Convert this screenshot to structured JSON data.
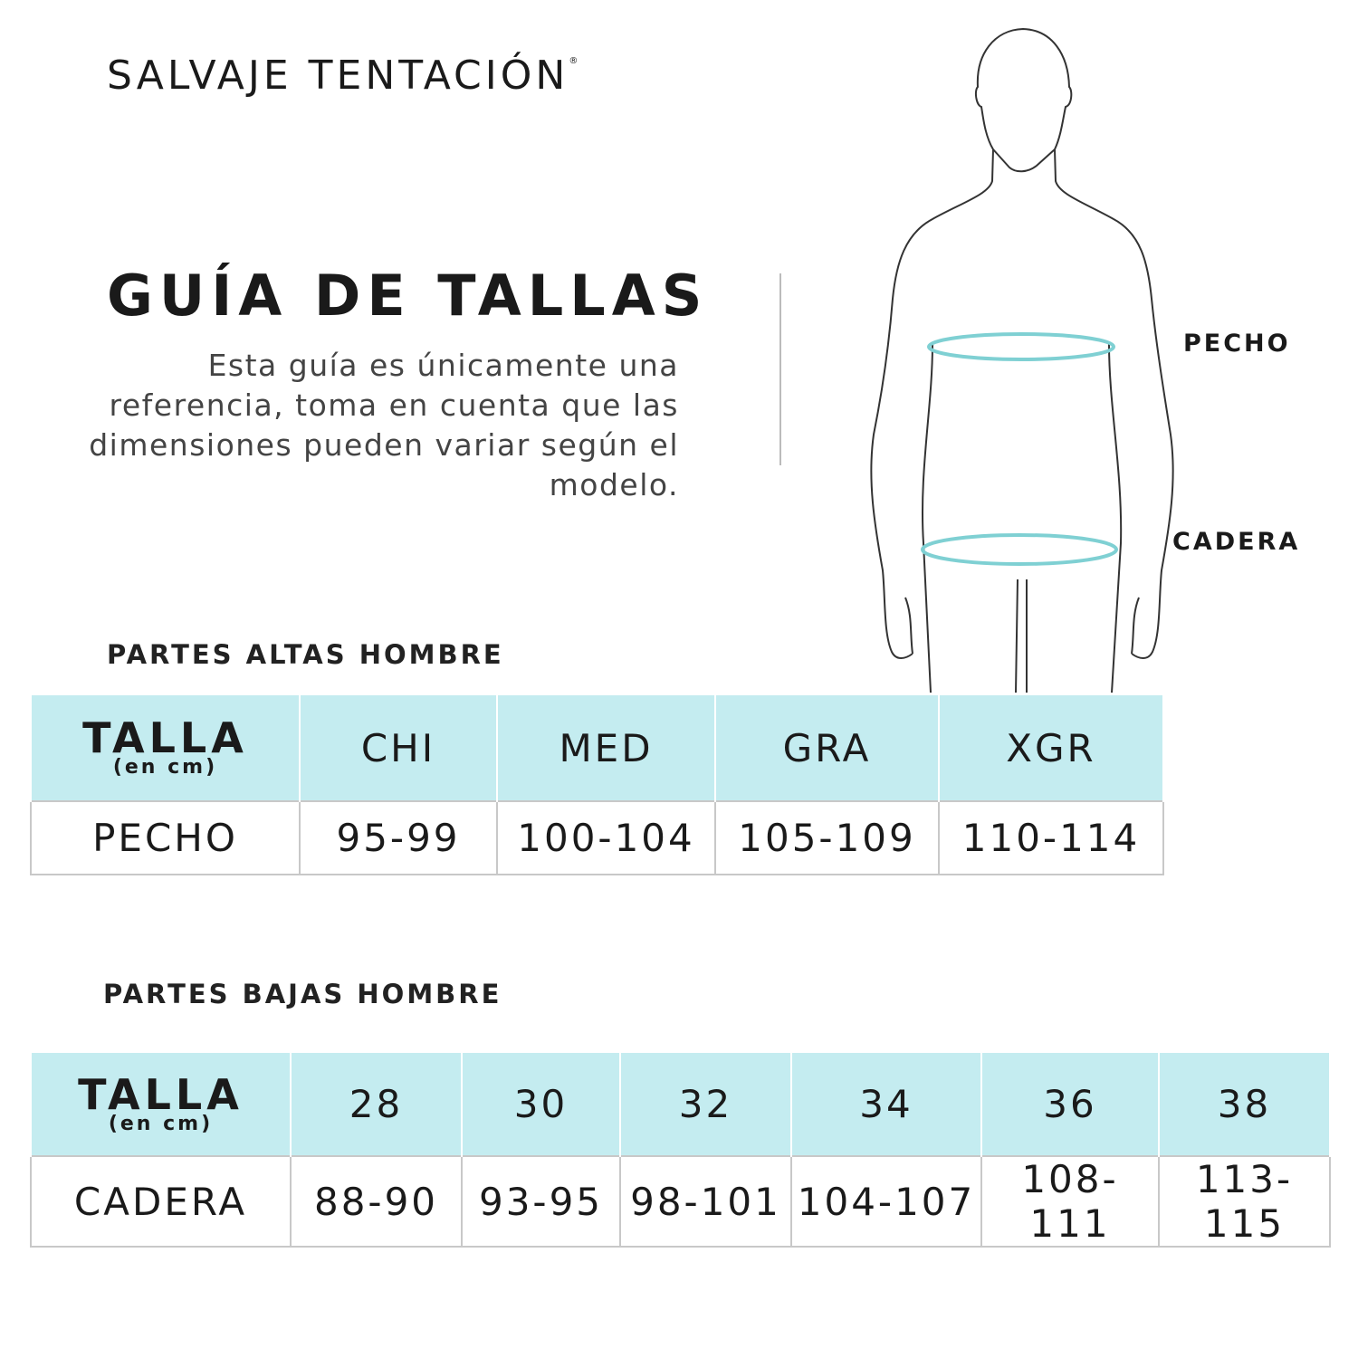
{
  "brand": {
    "name": "SALVAJE TENTACIÓN",
    "mark": "®"
  },
  "title": "GUÍA DE TALLAS",
  "description": "Esta guía es únicamente una referencia, toma en cuenta que las dimensiones pueden variar según el modelo.",
  "figure": {
    "labels": {
      "chest": "PECHO",
      "hip": "CADERA"
    },
    "ring_color": "#7fd0d3"
  },
  "colors": {
    "header_bg": "#c4ecf0"
  },
  "tops": {
    "section_title": "PARTES ALTAS HOMBRE",
    "header": {
      "talla": "TALLA",
      "unit": "(en cm)",
      "sizes": [
        "CHI",
        "MED",
        "GRA",
        "XGR"
      ]
    },
    "row": {
      "label": "PECHO",
      "values": [
        "95-99",
        "100-104",
        "105-109",
        "110-114"
      ]
    }
  },
  "bottoms": {
    "section_title": "PARTES BAJAS HOMBRE",
    "header": {
      "talla": "TALLA",
      "unit": "(en cm)",
      "sizes": [
        "28",
        "30",
        "32",
        "34",
        "36",
        "38"
      ]
    },
    "row": {
      "label": "CADERA",
      "values": [
        "88-90",
        "93-95",
        "98-101",
        "104-107",
        "108-111",
        "113-115"
      ]
    }
  }
}
